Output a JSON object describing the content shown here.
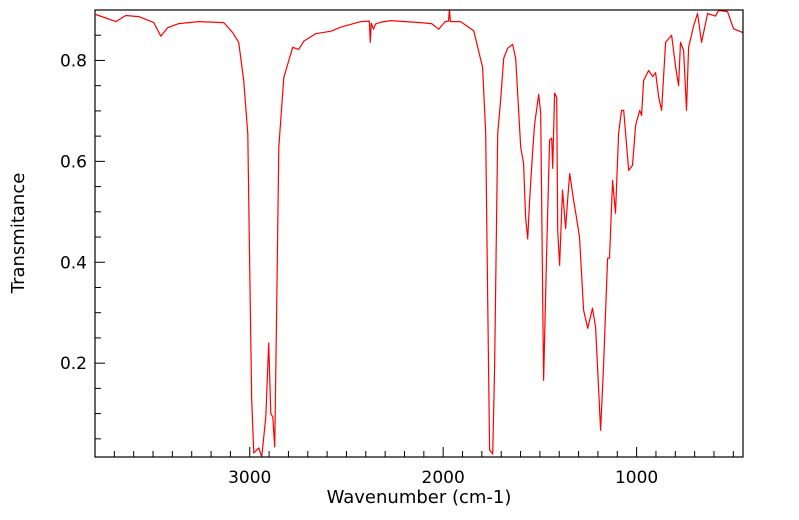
{
  "chart_data": {
    "type": "line",
    "title": "",
    "xlabel": "Wavenumber (cm-1)",
    "ylabel": "Transmitance",
    "xlim": [
      3800,
      450
    ],
    "ylim": [
      0.014,
      0.9
    ],
    "x_reversed": true,
    "grid": false,
    "legend": "none",
    "x_ticks": [
      3000,
      2000,
      1000
    ],
    "x_tick_labels": [
      "3000",
      "2000",
      "1000"
    ],
    "x_minor_step": 100,
    "y_ticks": [
      0.2,
      0.4,
      0.6,
      0.8
    ],
    "y_tick_labels": [
      "0.2",
      "0.4",
      "0.6",
      "0.8"
    ],
    "y_minor_step": 0.05,
    "series": [
      {
        "name": "spectrum",
        "color": "#ff0000",
        "points": [
          [
            3796,
            0.891
          ],
          [
            3692,
            0.877
          ],
          [
            3641,
            0.889
          ],
          [
            3574,
            0.887
          ],
          [
            3496,
            0.875
          ],
          [
            3460,
            0.848
          ],
          [
            3424,
            0.865
          ],
          [
            3367,
            0.873
          ],
          [
            3264,
            0.877
          ],
          [
            3134,
            0.875
          ],
          [
            3088,
            0.855
          ],
          [
            3057,
            0.836
          ],
          [
            3031,
            0.76
          ],
          [
            3010,
            0.655
          ],
          [
            3000,
            0.39
          ],
          [
            2990,
            0.127
          ],
          [
            2979,
            0.022
          ],
          [
            2953,
            0.032
          ],
          [
            2938,
            0.014
          ],
          [
            2917,
            0.093
          ],
          [
            2902,
            0.24
          ],
          [
            2891,
            0.1
          ],
          [
            2881,
            0.093
          ],
          [
            2871,
            0.034
          ],
          [
            2860,
            0.325
          ],
          [
            2850,
            0.628
          ],
          [
            2824,
            0.766
          ],
          [
            2778,
            0.826
          ],
          [
            2747,
            0.822
          ],
          [
            2721,
            0.838
          ],
          [
            2659,
            0.853
          ],
          [
            2580,
            0.858
          ],
          [
            2530,
            0.866
          ],
          [
            2426,
            0.877
          ],
          [
            2382,
            0.878
          ],
          [
            2377,
            0.836
          ],
          [
            2372,
            0.874
          ],
          [
            2360,
            0.862
          ],
          [
            2350,
            0.872
          ],
          [
            2320,
            0.876
          ],
          [
            2270,
            0.879
          ],
          [
            2120,
            0.875
          ],
          [
            2060,
            0.873
          ],
          [
            2023,
            0.862
          ],
          [
            1990,
            0.877
          ],
          [
            1972,
            0.878
          ],
          [
            1968,
            0.905
          ],
          [
            1963,
            0.877
          ],
          [
            1910,
            0.877
          ],
          [
            1842,
            0.859
          ],
          [
            1796,
            0.786
          ],
          [
            1780,
            0.655
          ],
          [
            1770,
            0.325
          ],
          [
            1760,
            0.028
          ],
          [
            1744,
            0.02
          ],
          [
            1734,
            0.192
          ],
          [
            1718,
            0.655
          ],
          [
            1703,
            0.721
          ],
          [
            1687,
            0.804
          ],
          [
            1667,
            0.824
          ],
          [
            1641,
            0.832
          ],
          [
            1625,
            0.804
          ],
          [
            1599,
            0.628
          ],
          [
            1584,
            0.596
          ],
          [
            1574,
            0.489
          ],
          [
            1563,
            0.446
          ],
          [
            1553,
            0.523
          ],
          [
            1537,
            0.622
          ],
          [
            1527,
            0.675
          ],
          [
            1506,
            0.733
          ],
          [
            1496,
            0.695
          ],
          [
            1481,
            0.166
          ],
          [
            1465,
            0.424
          ],
          [
            1450,
            0.642
          ],
          [
            1439,
            0.646
          ],
          [
            1434,
            0.586
          ],
          [
            1424,
            0.735
          ],
          [
            1413,
            0.727
          ],
          [
            1408,
            0.463
          ],
          [
            1398,
            0.394
          ],
          [
            1383,
            0.543
          ],
          [
            1367,
            0.467
          ],
          [
            1357,
            0.523
          ],
          [
            1346,
            0.576
          ],
          [
            1326,
            0.523
          ],
          [
            1310,
            0.487
          ],
          [
            1295,
            0.45
          ],
          [
            1274,
            0.305
          ],
          [
            1253,
            0.269
          ],
          [
            1228,
            0.309
          ],
          [
            1212,
            0.271
          ],
          [
            1186,
            0.067
          ],
          [
            1171,
            0.192
          ],
          [
            1150,
            0.408
          ],
          [
            1140,
            0.408
          ],
          [
            1124,
            0.562
          ],
          [
            1109,
            0.497
          ],
          [
            1093,
            0.655
          ],
          [
            1078,
            0.701
          ],
          [
            1067,
            0.701
          ],
          [
            1041,
            0.582
          ],
          [
            1021,
            0.592
          ],
          [
            1005,
            0.671
          ],
          [
            984,
            0.701
          ],
          [
            974,
            0.691
          ],
          [
            964,
            0.76
          ],
          [
            938,
            0.78
          ],
          [
            917,
            0.768
          ],
          [
            902,
            0.776
          ],
          [
            886,
            0.727
          ],
          [
            871,
            0.701
          ],
          [
            850,
            0.836
          ],
          [
            819,
            0.85
          ],
          [
            798,
            0.786
          ],
          [
            783,
            0.75
          ],
          [
            773,
            0.836
          ],
          [
            757,
            0.82
          ],
          [
            742,
            0.701
          ],
          [
            731,
            0.826
          ],
          [
            705,
            0.869
          ],
          [
            685,
            0.893
          ],
          [
            664,
            0.836
          ],
          [
            633,
            0.893
          ],
          [
            592,
            0.888
          ],
          [
            576,
            0.899
          ],
          [
            530,
            0.897
          ],
          [
            499,
            0.863
          ],
          [
            450,
            0.855
          ]
        ]
      }
    ]
  }
}
